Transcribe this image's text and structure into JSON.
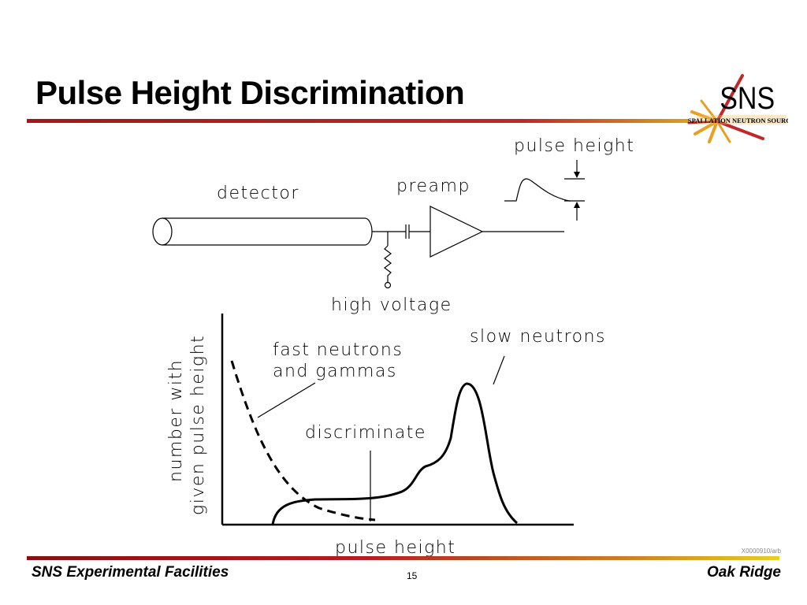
{
  "slide": {
    "title": "Pulse Height Discrimination"
  },
  "logo": {
    "text": "SNS",
    "subtitle": "SPALLATION NEUTRON SOURCE"
  },
  "diagram": {
    "labels": {
      "pulse_height_top": "pulse height",
      "detector": "detector",
      "preamp": "preamp",
      "high_voltage": "high voltage",
      "y_axis_line1": "number with",
      "y_axis_line2": "given pulse height",
      "fast_line1": "fast neutrons",
      "fast_line2": "and gammas",
      "slow_neutrons": "slow neutrons",
      "discriminate": "discriminate",
      "x_axis": "pulse height"
    }
  },
  "footer": {
    "left": "SNS Experimental Facilities",
    "page": "15",
    "right": "Oak Ridge",
    "code": "X0000910/arb"
  },
  "colors": {
    "title_rule": "#c0282a",
    "footer_rule_start": "#8a1010",
    "footer_rule_end": "#e8d020",
    "logo_sun": "#e8a020",
    "logo_red": "#c0282a"
  }
}
